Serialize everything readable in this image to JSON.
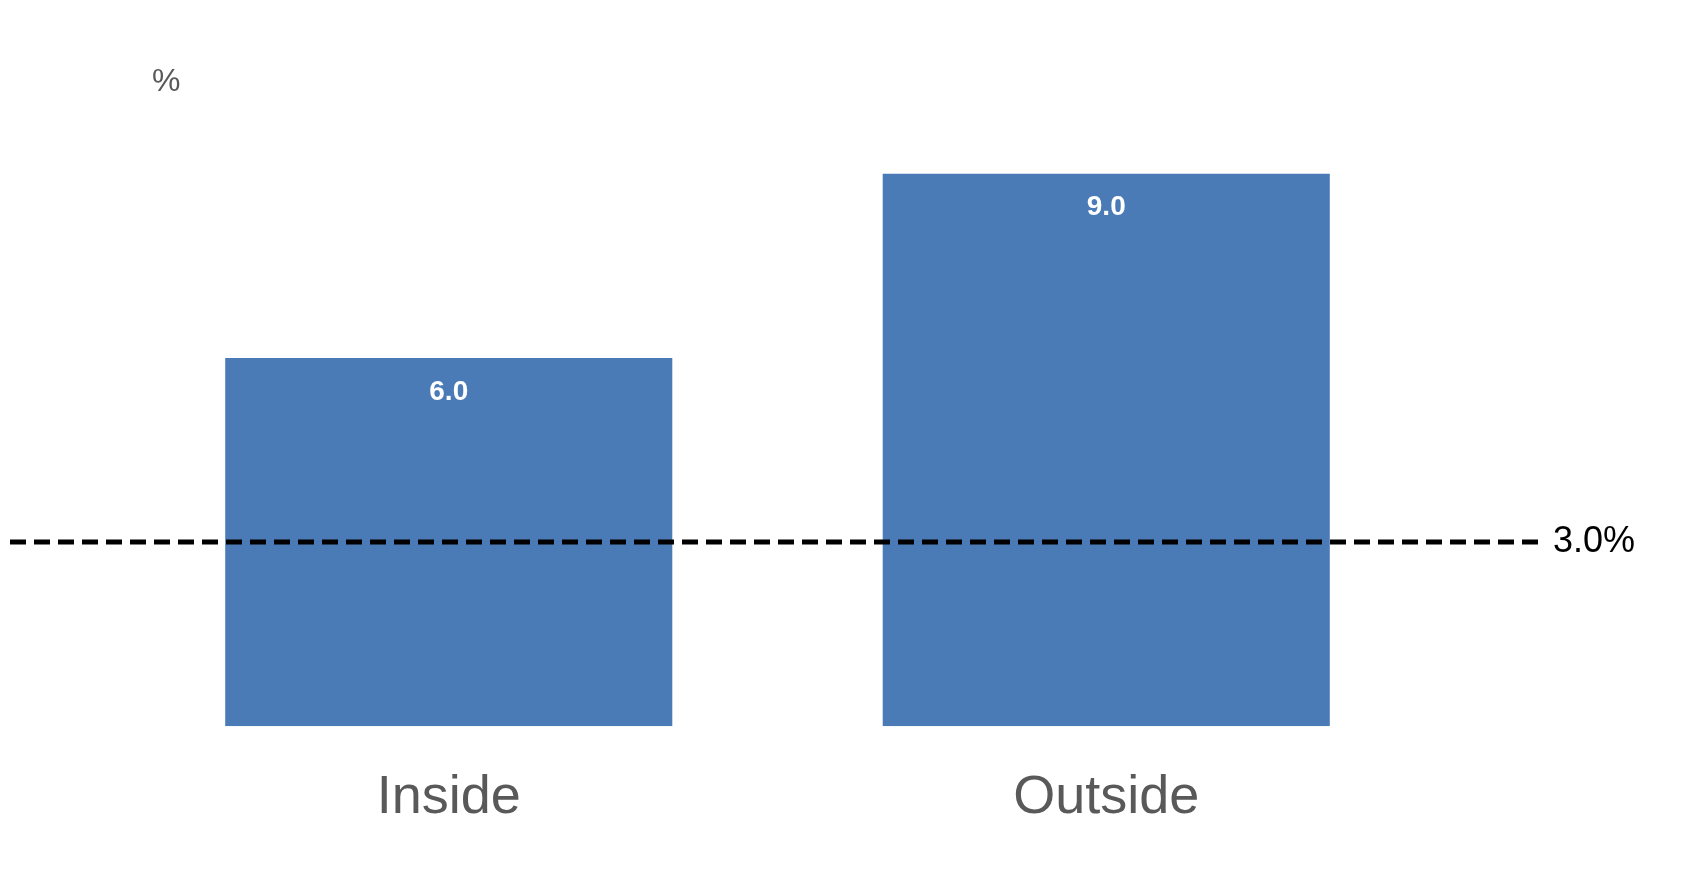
{
  "chart_data": {
    "type": "bar",
    "ylabel": "%",
    "categories": [
      "Inside",
      "Outside"
    ],
    "values": [
      6.0,
      9.0
    ],
    "color": "#4a7bb7",
    "value_labels": [
      "6.0",
      "9.0"
    ],
    "grid": false,
    "legend": false,
    "ref_lines": [
      {
        "axis": "y",
        "value": 3.0,
        "label": "3.0%",
        "color": "#000000",
        "line_style": "dashed"
      }
    ]
  }
}
